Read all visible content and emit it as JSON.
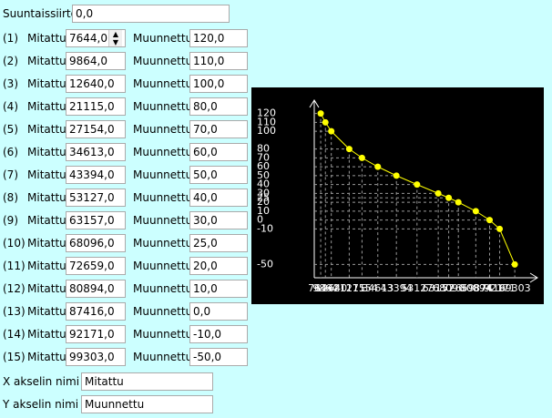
{
  "form": {
    "offset_label": "Suuntaissiirto",
    "offset_value": "0,0",
    "rows": [
      {
        "index": "(1)",
        "measured_label": "Mitattu",
        "measured": "7644,0",
        "converted_label": "Muunnettu",
        "converted": "120,0"
      },
      {
        "index": "(2)",
        "measured_label": "Mitattu",
        "measured": "9864,0",
        "converted_label": "Muunnettu",
        "converted": "110,0"
      },
      {
        "index": "(3)",
        "measured_label": "Mitattu",
        "measured": "12640,0",
        "converted_label": "Muunnettu",
        "converted": "100,0"
      },
      {
        "index": "(4)",
        "measured_label": "Mitattu",
        "measured": "21115,0",
        "converted_label": "Muunnettu",
        "converted": "80,0"
      },
      {
        "index": "(5)",
        "measured_label": "Mitattu",
        "measured": "27154,0",
        "converted_label": "Muunnettu",
        "converted": "70,0"
      },
      {
        "index": "(6)",
        "measured_label": "Mitattu",
        "measured": "34613,0",
        "converted_label": "Muunnettu",
        "converted": "60,0"
      },
      {
        "index": "(7)",
        "measured_label": "Mitattu",
        "measured": "43394,0",
        "converted_label": "Muunnettu",
        "converted": "50,0"
      },
      {
        "index": "(8)",
        "measured_label": "Mitattu",
        "measured": "53127,0",
        "converted_label": "Muunnettu",
        "converted": "40,0"
      },
      {
        "index": "(9)",
        "measured_label": "Mitattu",
        "measured": "63157,0",
        "converted_label": "Muunnettu",
        "converted": "30,0"
      },
      {
        "index": "(10)",
        "measured_label": "Mitattu",
        "measured": "68096,0",
        "converted_label": "Muunnettu",
        "converted": "25,0"
      },
      {
        "index": "(11)",
        "measured_label": "Mitattu",
        "measured": "72659,0",
        "converted_label": "Muunnettu",
        "converted": "20,0"
      },
      {
        "index": "(12)",
        "measured_label": "Mitattu",
        "measured": "80894,0",
        "converted_label": "Muunnettu",
        "converted": "10,0"
      },
      {
        "index": "(13)",
        "measured_label": "Mitattu",
        "measured": "87416,0",
        "converted_label": "Muunnettu",
        "converted": "0,0"
      },
      {
        "index": "(14)",
        "measured_label": "Mitattu",
        "measured": "92171,0",
        "converted_label": "Muunnettu",
        "converted": "-10,0"
      },
      {
        "index": "(15)",
        "measured_label": "Mitattu",
        "measured": "99303,0",
        "converted_label": "Muunnettu",
        "converted": "-50,0"
      }
    ],
    "x_axis_label": "X akselin nimi",
    "x_axis_name": "Mitattu",
    "y_axis_label": "Y akselin nimi",
    "y_axis_name": "Muunnettu"
  },
  "chart_data": {
    "type": "line",
    "x": [
      7644,
      9864,
      12640,
      21115,
      27154,
      34613,
      43394,
      53127,
      63157,
      68096,
      72659,
      80894,
      87416,
      92171,
      99303
    ],
    "values": [
      120,
      110,
      100,
      80,
      70,
      60,
      50,
      40,
      30,
      25,
      20,
      10,
      0,
      -10,
      -50
    ],
    "color": "#ffff00",
    "xlim": [
      4600,
      110000
    ],
    "ylim": [
      -65,
      135
    ],
    "xticks": [
      7644,
      9864,
      12640,
      21115,
      27154,
      34613,
      43394,
      53127,
      63157,
      68096,
      72659,
      80894,
      87416,
      92171,
      99303
    ],
    "yticks": [
      120,
      110,
      100,
      80,
      70,
      60,
      50,
      40,
      30,
      25,
      20,
      10,
      0,
      -10,
      -50
    ],
    "grid": true
  }
}
